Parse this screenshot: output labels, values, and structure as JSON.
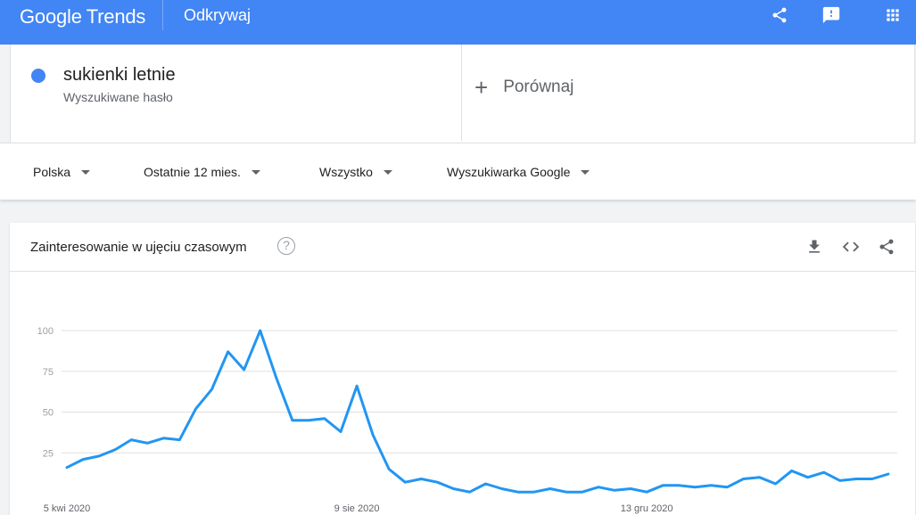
{
  "header": {
    "logo_google": "Google",
    "logo_trends": "Trends",
    "section_title": "Odkrywaj",
    "actions": [
      {
        "name": "share-icon"
      },
      {
        "name": "feedback-icon"
      },
      {
        "name": "apps-icon"
      }
    ],
    "bar_color": "#4285f4"
  },
  "search_term": {
    "term": "sukienki letnie",
    "sublabel": "Wyszukiwane hasło",
    "color": "#4285f4"
  },
  "compare": {
    "plus": "+",
    "label": "Porównaj"
  },
  "filters": [
    {
      "label": "Polska"
    },
    {
      "label": "Ostatnie 12 mies."
    },
    {
      "label": "Wszystko"
    },
    {
      "label": "Wyszukiwarka Google"
    }
  ],
  "interest_card": {
    "title": "Zainteresowanie w ujęciu czasowym",
    "help_icon": "?",
    "actions": [
      {
        "name": "download-icon"
      },
      {
        "name": "embed-icon"
      },
      {
        "name": "share-icon"
      }
    ]
  },
  "chart_data": {
    "type": "line",
    "title": "",
    "xlabel": "",
    "ylabel": "",
    "ylim": [
      0,
      100
    ],
    "y_ticks": [
      100,
      75,
      50,
      25
    ],
    "x_tick_labels": [
      {
        "label": "5 kwi 2020",
        "index": 0
      },
      {
        "label": "9 sie 2020",
        "index": 18
      },
      {
        "label": "13 gru 2020",
        "index": 36
      }
    ],
    "grid": true,
    "series": [
      {
        "color": "#2196f3",
        "values": [
          16,
          21,
          23,
          27,
          33,
          31,
          34,
          33,
          52,
          64,
          87,
          76,
          100,
          71,
          45,
          45,
          46,
          38,
          66,
          36,
          15,
          7,
          9,
          7,
          3,
          1,
          6,
          3,
          1,
          1,
          3,
          1,
          1,
          4,
          2,
          3,
          1,
          5,
          5,
          4,
          5,
          4,
          9,
          10,
          6,
          14,
          10,
          13,
          8,
          9,
          9,
          12
        ]
      }
    ]
  }
}
